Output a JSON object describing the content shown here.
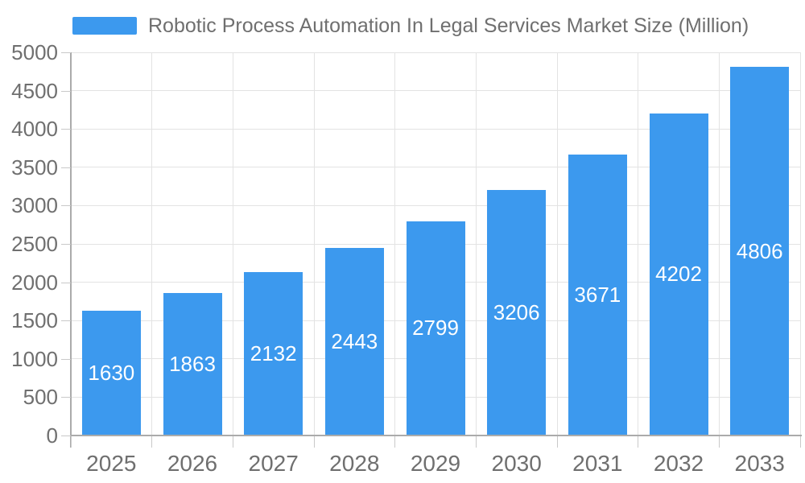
{
  "chart_data": {
    "type": "bar",
    "title": "Robotic Process Automation In Legal Services Market Size (Million)",
    "categories": [
      "2025",
      "2026",
      "2027",
      "2028",
      "2029",
      "2030",
      "2031",
      "2032",
      "2033"
    ],
    "values": [
      1630,
      1863,
      2132,
      2443,
      2799,
      3206,
      3671,
      4202,
      4806
    ],
    "xlabel": "",
    "ylabel": "",
    "ylim": [
      0,
      5000
    ],
    "ytick_step": 500,
    "yticks": [
      0,
      500,
      1000,
      1500,
      2000,
      2500,
      3000,
      3500,
      4000,
      4500,
      5000
    ],
    "grid": true,
    "legend_position": "top-left",
    "value_labels": "inside-center",
    "colors": {
      "bar": "#3c99ee",
      "value_label": "#ffffff",
      "axis_text": "#6f6f6f",
      "grid_line": "#e3e3e3",
      "axis_line": "#ababab",
      "tick": "#c9c9c9",
      "background": "#ffffff"
    }
  }
}
